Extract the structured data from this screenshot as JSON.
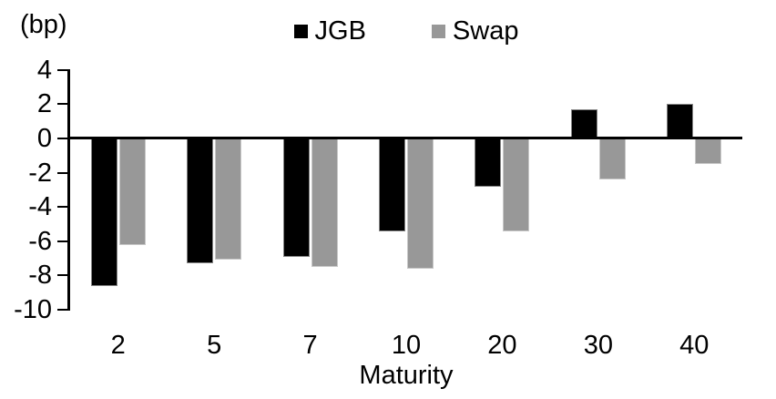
{
  "chart": {
    "unit_label": "(bp)",
    "x_axis_title": "Maturity"
  },
  "chart_data": {
    "type": "bar",
    "title": "",
    "categories": [
      "2",
      "5",
      "7",
      "10",
      "20",
      "30",
      "40"
    ],
    "series": [
      {
        "name": "JGB",
        "color": "#000000",
        "values": [
          -8.6,
          -7.3,
          -6.9,
          -5.4,
          -2.8,
          1.7,
          2.0
        ]
      },
      {
        "name": "Swap",
        "color": "#989898",
        "values": [
          -6.2,
          -7.1,
          -7.5,
          -7.6,
          -5.4,
          -2.4,
          -1.5
        ]
      }
    ],
    "xlabel": "Maturity",
    "ylabel": "(bp)",
    "ylim": [
      -10,
      4
    ],
    "yticks": [
      4,
      2,
      0,
      -2,
      -4,
      -6,
      -8,
      -10
    ],
    "grid": false,
    "legend_position": "top-center",
    "axis_color": "#000000"
  }
}
